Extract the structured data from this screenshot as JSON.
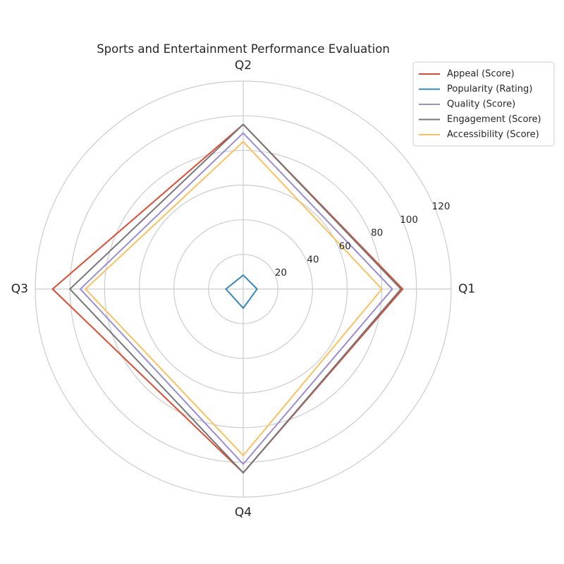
{
  "chart_data": {
    "type": "radar",
    "title": "Sports and Entertainment Performance Evaluation",
    "categories": [
      "Q1",
      "Q2",
      "Q3",
      "Q4"
    ],
    "rlim": [
      0,
      120
    ],
    "rticks": [
      20,
      40,
      60,
      80,
      100,
      120
    ],
    "grid": true,
    "legend_position": "top-right",
    "series": [
      {
        "name": "Appeal (Score)",
        "color": "#E24A33",
        "values": [
          92,
          95,
          110,
          106
        ]
      },
      {
        "name": "Popularity (Rating)",
        "color": "#348ABD",
        "values": [
          8,
          8,
          10,
          11
        ]
      },
      {
        "name": "Quality (Score)",
        "color": "#988ED5",
        "values": [
          86,
          90,
          94,
          101
        ]
      },
      {
        "name": "Engagement (Score)",
        "color": "#777777",
        "values": [
          91,
          95,
          100,
          106
        ]
      },
      {
        "name": "Accessibility (Score)",
        "color": "#FBC15E",
        "values": [
          80,
          85,
          91,
          96
        ]
      }
    ]
  }
}
